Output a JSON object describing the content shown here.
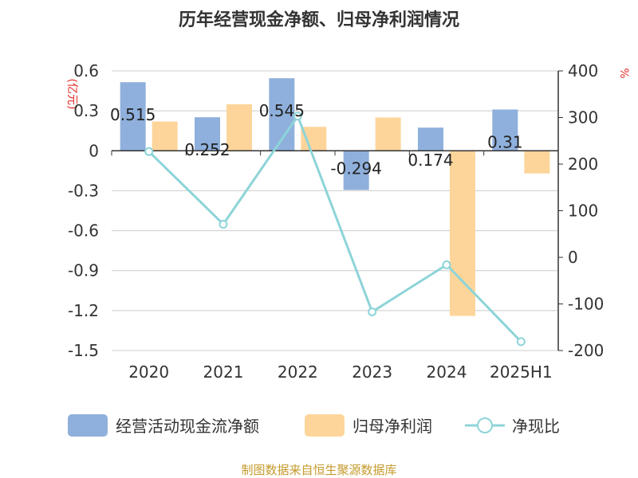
{
  "colors": {
    "cashflow": "#8fb0dc",
    "profit": "#fdd59a",
    "ratio": "#8dd4d8",
    "grid": "#cccccc",
    "axis": "#333333",
    "unit": "#e0302e",
    "source": "#c49a2c"
  },
  "chart_data": {
    "type": "bar",
    "title": "历年经营现金净额、归母净利润情况",
    "categories": [
      "2020",
      "2021",
      "2022",
      "2023",
      "2024",
      "2025H1"
    ],
    "left_axis": {
      "unit": "(亿元)",
      "ylim": [
        -1.5,
        0.6
      ],
      "ticks": [
        "0.6",
        "0.3",
        "0",
        "-0.3",
        "-0.6",
        "-0.9",
        "-1.2",
        "-1.5"
      ]
    },
    "right_axis": {
      "unit": "%",
      "ylim": [
        -200,
        400
      ],
      "ticks": [
        "400",
        "300",
        "200",
        "100",
        "0",
        "-100",
        "-200"
      ]
    },
    "series": [
      {
        "name": "经营活动现金流净额",
        "type": "bar",
        "axis": "left",
        "values": [
          0.515,
          0.252,
          0.545,
          -0.294,
          0.174,
          0.31
        ],
        "labels": [
          "0.515",
          "0.252",
          "0.545",
          "-0.294",
          "0.174",
          "0.31"
        ]
      },
      {
        "name": "归母净利润",
        "type": "bar",
        "axis": "left",
        "values": [
          0.22,
          0.35,
          0.18,
          0.25,
          -1.24,
          -0.17
        ]
      },
      {
        "name": "净现比",
        "type": "line",
        "axis": "right",
        "values": [
          227,
          71,
          303,
          -117,
          -16,
          -181
        ]
      }
    ],
    "grid": true,
    "legend_position": "bottom"
  },
  "footer": {
    "source": "制图数据来自恒生聚源数据库"
  }
}
